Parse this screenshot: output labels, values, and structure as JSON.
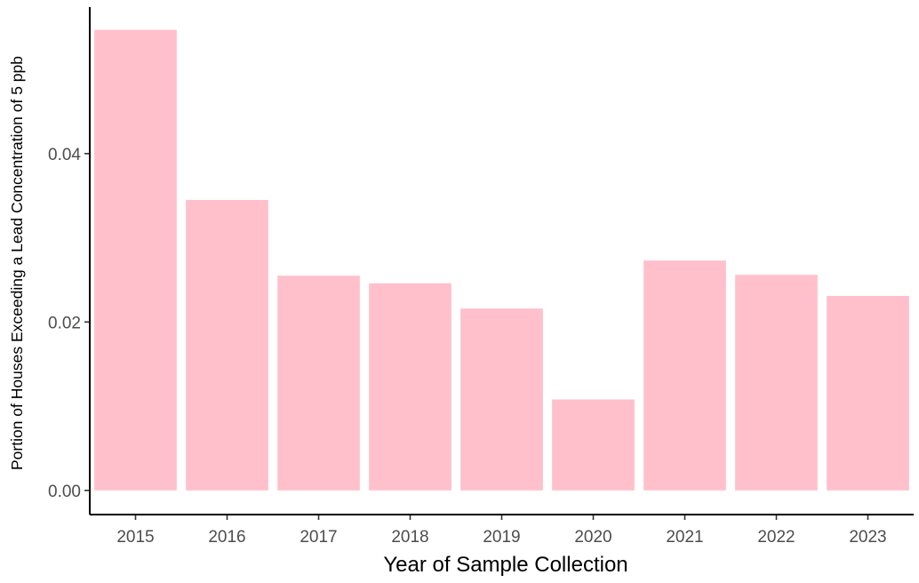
{
  "chart_data": {
    "type": "bar",
    "title": "",
    "xlabel": "Year of Sample Collection",
    "ylabel": "Portion of Houses Exceeding a Lead Concentration of 5 ppb",
    "categories": [
      "2015",
      "2016",
      "2017",
      "2018",
      "2019",
      "2020",
      "2021",
      "2022",
      "2023"
    ],
    "values": [
      0.0547,
      0.0345,
      0.0255,
      0.0246,
      0.0216,
      0.0108,
      0.0273,
      0.0256,
      0.0231
    ],
    "ylim": [
      -0.00287,
      0.0574
    ],
    "yticks": [
      0.0,
      0.02,
      0.04
    ],
    "ytick_labels": [
      "0.00",
      "0.02",
      "0.04"
    ],
    "grid": false,
    "legend": "none",
    "bar_color": "#FFC0CB"
  }
}
